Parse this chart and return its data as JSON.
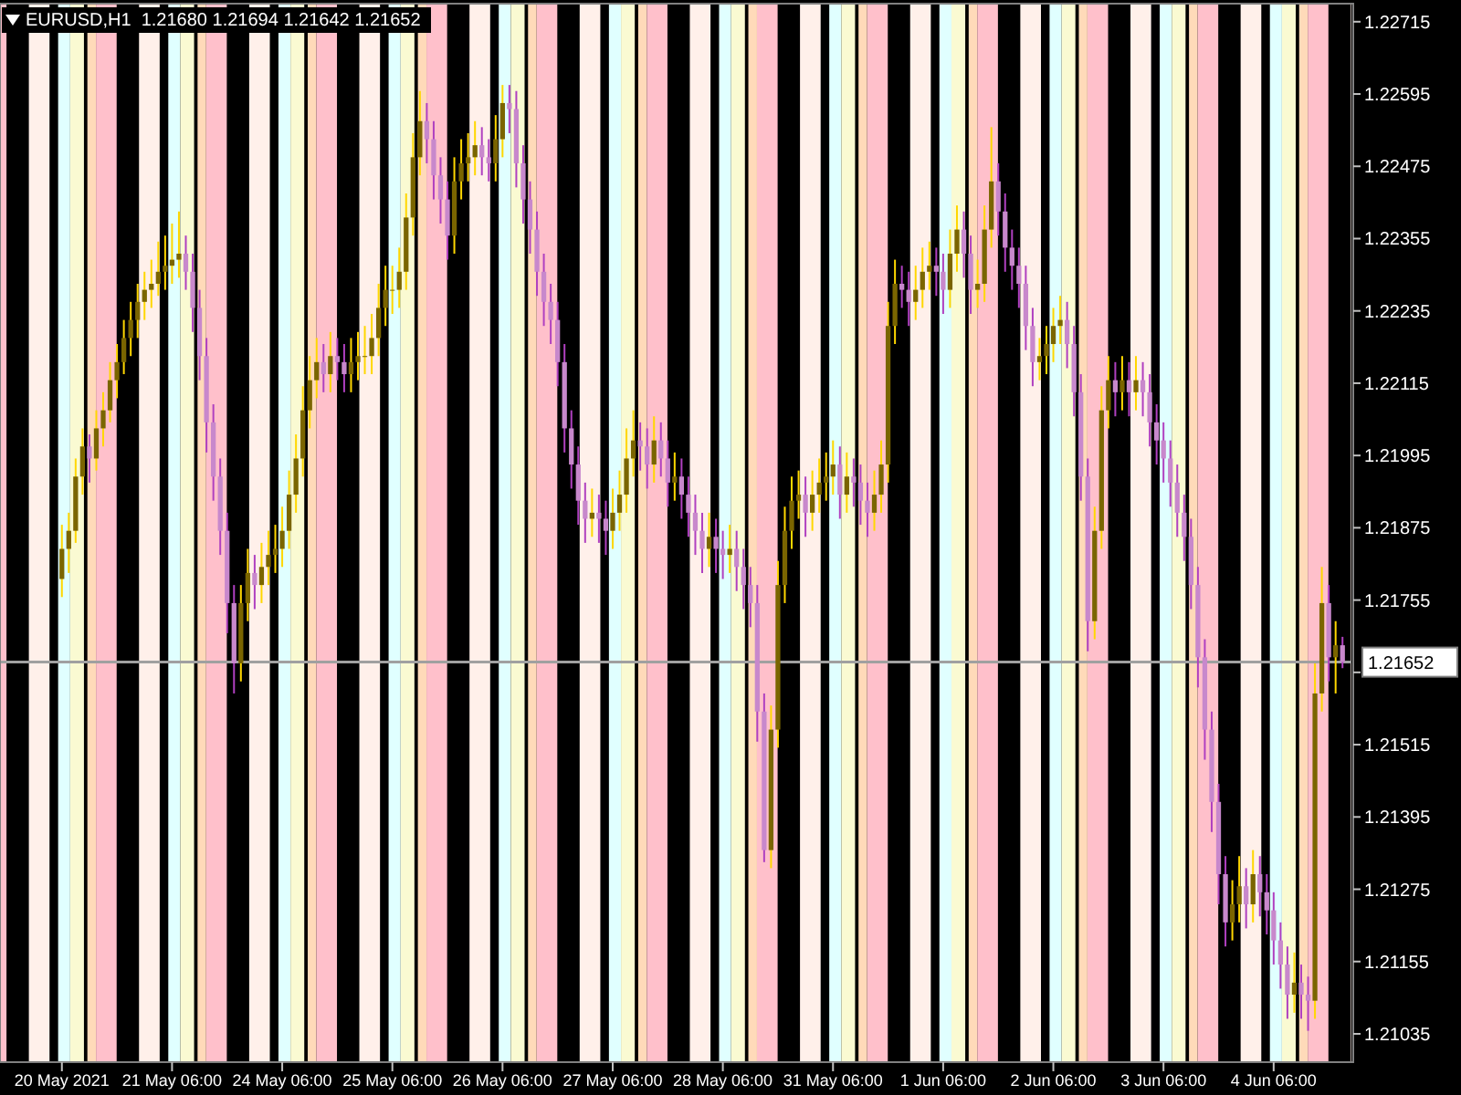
{
  "chart_data": {
    "type": "candlestick",
    "title": "EURUSD,H1  1.21680 1.21694 1.21642 1.21652",
    "categories": [
      "20 May 2021",
      null,
      null,
      null,
      null,
      null,
      null,
      null,
      null,
      null,
      null,
      null,
      null,
      null,
      null,
      null,
      "21 May 06:00",
      null,
      null,
      null,
      null,
      null,
      null,
      null,
      null,
      null,
      null,
      null,
      null,
      null,
      null,
      null,
      "24 May 06:00",
      null,
      null,
      null,
      null,
      null,
      null,
      null,
      null,
      null,
      null,
      null,
      null,
      null,
      null,
      null,
      "25 May 06:00",
      null,
      null,
      null,
      null,
      null,
      null,
      null,
      null,
      null,
      null,
      null,
      null,
      null,
      null,
      null,
      "26 May 06:00",
      null,
      null,
      null,
      null,
      null,
      null,
      null,
      null,
      null,
      null,
      null,
      null,
      null,
      null,
      null,
      "27 May 06:00",
      null,
      null,
      null,
      null,
      null,
      null,
      null,
      null,
      null,
      null,
      null,
      null,
      null,
      null,
      null,
      "28 May 06:00",
      null,
      null,
      null,
      null,
      null,
      null,
      null,
      null,
      null,
      null,
      null,
      null,
      null,
      null,
      null,
      "31 May 06:00",
      null,
      null,
      null,
      null,
      null,
      null,
      null,
      null,
      null,
      null,
      null,
      null,
      null,
      null,
      null,
      "1 Jun 06:00",
      null,
      null,
      null,
      null,
      null,
      null,
      null,
      null,
      null,
      null,
      null,
      null,
      null,
      null,
      null,
      "2 Jun 06:00",
      null,
      null,
      null,
      null,
      null,
      null,
      null,
      null,
      null,
      null,
      null,
      null,
      null,
      null,
      null,
      "3 Jun 06:00",
      null,
      null,
      null,
      null,
      null,
      null,
      null,
      null,
      null,
      null,
      null,
      null,
      null,
      null,
      null,
      "4 Jun 06:00",
      null,
      null,
      null,
      null,
      null,
      null,
      null,
      null,
      null,
      null
    ],
    "ohlc": [
      [
        1.2179,
        1.2188,
        1.2176,
        1.2184
      ],
      [
        1.2184,
        1.219,
        1.218,
        1.2187
      ],
      [
        1.2187,
        1.2199,
        1.2185,
        1.2196
      ],
      [
        1.2196,
        1.2204,
        1.2193,
        1.2201
      ],
      [
        1.2201,
        1.2203,
        1.2195,
        1.2199
      ],
      [
        1.2199,
        1.2207,
        1.2197,
        1.2204
      ],
      [
        1.2204,
        1.221,
        1.2201,
        1.2207
      ],
      [
        1.2207,
        1.2215,
        1.2205,
        1.2212
      ],
      [
        1.2212,
        1.2218,
        1.2209,
        1.2215
      ],
      [
        1.2215,
        1.2222,
        1.2213,
        1.2219
      ],
      [
        1.2219,
        1.2225,
        1.2216,
        1.2222
      ],
      [
        1.2222,
        1.2228,
        1.2219,
        1.2225
      ],
      [
        1.2225,
        1.223,
        1.2222,
        1.2227
      ],
      [
        1.2227,
        1.2232,
        1.2224,
        1.2228
      ],
      [
        1.2228,
        1.2235,
        1.2226,
        1.223
      ],
      [
        1.223,
        1.2236,
        1.2227,
        1.2231
      ],
      [
        1.2231,
        1.2238,
        1.2228,
        1.2232
      ],
      [
        1.2232,
        1.224,
        1.2229,
        1.2233
      ],
      [
        1.2233,
        1.2236,
        1.2227,
        1.223
      ],
      [
        1.223,
        1.2233,
        1.222,
        1.2224
      ],
      [
        1.2224,
        1.2227,
        1.2212,
        1.2216
      ],
      [
        1.2216,
        1.2219,
        1.22,
        1.2205
      ],
      [
        1.2205,
        1.2208,
        1.2192,
        1.2196
      ],
      [
        1.2196,
        1.2199,
        1.2183,
        1.2187
      ],
      [
        1.2187,
        1.219,
        1.217,
        1.2175
      ],
      [
        1.2175,
        1.2178,
        1.216,
        1.2165
      ],
      [
        1.2165,
        1.2178,
        1.2162,
        1.2175
      ],
      [
        1.2175,
        1.2184,
        1.2172,
        1.218
      ],
      [
        1.218,
        1.2183,
        1.2174,
        1.2178
      ],
      [
        1.2178,
        1.2185,
        1.2175,
        1.2181
      ],
      [
        1.2181,
        1.2187,
        1.2178,
        1.2183
      ],
      [
        1.2183,
        1.2188,
        1.218,
        1.2184
      ],
      [
        1.2184,
        1.2191,
        1.2181,
        1.2187
      ],
      [
        1.2187,
        1.2197,
        1.2184,
        1.2193
      ],
      [
        1.2193,
        1.2203,
        1.219,
        1.2199
      ],
      [
        1.2199,
        1.2211,
        1.2196,
        1.2207
      ],
      [
        1.2207,
        1.2216,
        1.2204,
        1.2212
      ],
      [
        1.2212,
        1.2219,
        1.2209,
        1.2215
      ],
      [
        1.2215,
        1.2218,
        1.221,
        1.2213
      ],
      [
        1.2213,
        1.222,
        1.221,
        1.2216
      ],
      [
        1.2216,
        1.2219,
        1.2212,
        1.2215
      ],
      [
        1.2215,
        1.2218,
        1.221,
        1.2213
      ],
      [
        1.2213,
        1.2219,
        1.221,
        1.2215
      ],
      [
        1.2215,
        1.222,
        1.2212,
        1.2216
      ],
      [
        1.2216,
        1.2221,
        1.2213,
        1.2216
      ],
      [
        1.2216,
        1.2223,
        1.2213,
        1.2219
      ],
      [
        1.2219,
        1.2228,
        1.2216,
        1.2224
      ],
      [
        1.2224,
        1.2231,
        1.2221,
        1.2227
      ],
      [
        1.2227,
        1.2231,
        1.2223,
        1.2227
      ],
      [
        1.2227,
        1.2234,
        1.2224,
        1.223
      ],
      [
        1.223,
        1.2243,
        1.2227,
        1.2239
      ],
      [
        1.2239,
        1.2253,
        1.2236,
        1.2249
      ],
      [
        1.2249,
        1.226,
        1.2246,
        1.2255
      ],
      [
        1.2255,
        1.2258,
        1.2248,
        1.2252
      ],
      [
        1.2252,
        1.2255,
        1.2242,
        1.2246
      ],
      [
        1.2246,
        1.2249,
        1.2238,
        1.2242
      ],
      [
        1.2242,
        1.2245,
        1.2232,
        1.2236
      ],
      [
        1.2236,
        1.2249,
        1.2233,
        1.2245
      ],
      [
        1.2245,
        1.2252,
        1.2242,
        1.2248
      ],
      [
        1.2248,
        1.2253,
        1.2245,
        1.2249
      ],
      [
        1.2249,
        1.2255,
        1.2246,
        1.2251
      ],
      [
        1.2251,
        1.2254,
        1.2246,
        1.2249
      ],
      [
        1.2249,
        1.2252,
        1.2245,
        1.2248
      ],
      [
        1.2248,
        1.2256,
        1.2245,
        1.2252
      ],
      [
        1.2252,
        1.2261,
        1.2249,
        1.2258
      ],
      [
        1.2258,
        1.2261,
        1.2253,
        1.2257
      ],
      [
        1.2257,
        1.226,
        1.2244,
        1.2248
      ],
      [
        1.2248,
        1.2251,
        1.2238,
        1.2242
      ],
      [
        1.2242,
        1.2245,
        1.2233,
        1.2237
      ],
      [
        1.2237,
        1.224,
        1.2226,
        1.223
      ],
      [
        1.223,
        1.2233,
        1.2221,
        1.2225
      ],
      [
        1.2225,
        1.2228,
        1.2218,
        1.2222
      ],
      [
        1.2222,
        1.2225,
        1.2211,
        1.2215
      ],
      [
        1.2215,
        1.2218,
        1.22,
        1.2204
      ],
      [
        1.2204,
        1.2207,
        1.2194,
        1.2198
      ],
      [
        1.2198,
        1.2201,
        1.2188,
        1.2192
      ],
      [
        1.2192,
        1.2195,
        1.2185,
        1.2189
      ],
      [
        1.2189,
        1.2194,
        1.2186,
        1.219
      ],
      [
        1.219,
        1.2193,
        1.2185,
        1.2189
      ],
      [
        1.2189,
        1.2192,
        1.2183,
        1.2187
      ],
      [
        1.2187,
        1.2194,
        1.2184,
        1.219
      ],
      [
        1.219,
        1.2197,
        1.2187,
        1.2193
      ],
      [
        1.2193,
        1.2204,
        1.219,
        1.2199
      ],
      [
        1.2199,
        1.2207,
        1.2196,
        1.2202
      ],
      [
        1.2202,
        1.2205,
        1.2197,
        1.2201
      ],
      [
        1.2201,
        1.2204,
        1.2194,
        1.2198
      ],
      [
        1.2198,
        1.2206,
        1.2195,
        1.2202
      ],
      [
        1.2202,
        1.2205,
        1.2196,
        1.2199
      ],
      [
        1.2199,
        1.2202,
        1.2191,
        1.2195
      ],
      [
        1.2195,
        1.22,
        1.2192,
        1.2196
      ],
      [
        1.2196,
        1.2199,
        1.2189,
        1.2193
      ],
      [
        1.2193,
        1.2196,
        1.2186,
        1.219
      ],
      [
        1.219,
        1.2193,
        1.2183,
        1.2187
      ],
      [
        1.2187,
        1.219,
        1.218,
        1.2184
      ],
      [
        1.2184,
        1.219,
        1.2181,
        1.2186
      ],
      [
        1.2186,
        1.2189,
        1.218,
        1.2184
      ],
      [
        1.2184,
        1.2187,
        1.2179,
        1.2183
      ],
      [
        1.2183,
        1.2188,
        1.218,
        1.2184
      ],
      [
        1.2184,
        1.2187,
        1.2177,
        1.2181
      ],
      [
        1.2181,
        1.2184,
        1.2174,
        1.2178
      ],
      [
        1.2178,
        1.2181,
        1.2171,
        1.2175
      ],
      [
        1.2175,
        1.2178,
        1.2152,
        1.2157
      ],
      [
        1.2157,
        1.216,
        1.2132,
        1.2134
      ],
      [
        1.2134,
        1.2158,
        1.2131,
        1.2154
      ],
      [
        1.2154,
        1.2182,
        1.2151,
        1.2178
      ],
      [
        1.2178,
        1.2191,
        1.2175,
        1.2187
      ],
      [
        1.2187,
        1.2196,
        1.2184,
        1.2192
      ],
      [
        1.2192,
        1.2197,
        1.2189,
        1.2193
      ],
      [
        1.2193,
        1.2196,
        1.2186,
        1.219
      ],
      [
        1.219,
        1.2197,
        1.2187,
        1.2193
      ],
      [
        1.2193,
        1.2199,
        1.219,
        1.2195
      ],
      [
        1.2195,
        1.22,
        1.2192,
        1.2196
      ],
      [
        1.2196,
        1.2202,
        1.2193,
        1.2198
      ],
      [
        1.2198,
        1.2201,
        1.2189,
        1.2193
      ],
      [
        1.2193,
        1.22,
        1.219,
        1.2196
      ],
      [
        1.2196,
        1.2199,
        1.2191,
        1.2195
      ],
      [
        1.2195,
        1.2198,
        1.2188,
        1.2192
      ],
      [
        1.2192,
        1.2195,
        1.2186,
        1.219
      ],
      [
        1.219,
        1.2197,
        1.2187,
        1.2193
      ],
      [
        1.2193,
        1.2202,
        1.219,
        1.2198
      ],
      [
        1.2198,
        1.2225,
        1.2195,
        1.2221
      ],
      [
        1.2221,
        1.2232,
        1.2218,
        1.2228
      ],
      [
        1.2228,
        1.2231,
        1.2224,
        1.2227
      ],
      [
        1.2227,
        1.223,
        1.2221,
        1.2225
      ],
      [
        1.2225,
        1.2231,
        1.2222,
        1.2227
      ],
      [
        1.2227,
        1.2234,
        1.2224,
        1.223
      ],
      [
        1.223,
        1.2235,
        1.2227,
        1.2231
      ],
      [
        1.2231,
        1.2234,
        1.2226,
        1.223
      ],
      [
        1.223,
        1.2233,
        1.2223,
        1.2227
      ],
      [
        1.2227,
        1.2237,
        1.2224,
        1.2233
      ],
      [
        1.2233,
        1.2241,
        1.223,
        1.2237
      ],
      [
        1.2237,
        1.224,
        1.2229,
        1.2233
      ],
      [
        1.2233,
        1.2236,
        1.2223,
        1.2227
      ],
      [
        1.2227,
        1.2232,
        1.2224,
        1.2228
      ],
      [
        1.2228,
        1.2241,
        1.2225,
        1.2237
      ],
      [
        1.2237,
        1.2254,
        1.2234,
        1.2245
      ],
      [
        1.2245,
        1.2248,
        1.2236,
        1.224
      ],
      [
        1.224,
        1.2243,
        1.223,
        1.2234
      ],
      [
        1.2234,
        1.2237,
        1.2227,
        1.2231
      ],
      [
        1.2231,
        1.2234,
        1.2224,
        1.2228
      ],
      [
        1.2228,
        1.2231,
        1.2217,
        1.2221
      ],
      [
        1.2221,
        1.2224,
        1.2211,
        1.2215
      ],
      [
        1.2215,
        1.2219,
        1.2212,
        1.2216
      ],
      [
        1.2216,
        1.2221,
        1.2213,
        1.2218
      ],
      [
        1.2218,
        1.2224,
        1.2215,
        1.2221
      ],
      [
        1.2221,
        1.2226,
        1.2218,
        1.2222
      ],
      [
        1.2222,
        1.2225,
        1.2214,
        1.2218
      ],
      [
        1.2218,
        1.2221,
        1.2206,
        1.221
      ],
      [
        1.221,
        1.2213,
        1.2192,
        1.2196
      ],
      [
        1.2196,
        1.2199,
        1.2167,
        1.2172
      ],
      [
        1.2172,
        1.2191,
        1.2169,
        1.2187
      ],
      [
        1.2187,
        1.2211,
        1.2184,
        1.2207
      ],
      [
        1.2207,
        1.2216,
        1.2204,
        1.2212
      ],
      [
        1.2212,
        1.2215,
        1.2206,
        1.221
      ],
      [
        1.221,
        1.2216,
        1.2207,
        1.2212
      ],
      [
        1.2212,
        1.2215,
        1.2206,
        1.221
      ],
      [
        1.221,
        1.2216,
        1.2207,
        1.2212
      ],
      [
        1.2212,
        1.2215,
        1.2206,
        1.221
      ],
      [
        1.221,
        1.2213,
        1.2201,
        1.2205
      ],
      [
        1.2205,
        1.2208,
        1.2198,
        1.2202
      ],
      [
        1.2202,
        1.2205,
        1.2195,
        1.2199
      ],
      [
        1.2199,
        1.2202,
        1.2191,
        1.2195
      ],
      [
        1.2195,
        1.2198,
        1.2186,
        1.219
      ],
      [
        1.219,
        1.2193,
        1.2182,
        1.2186
      ],
      [
        1.2186,
        1.2189,
        1.2174,
        1.2178
      ],
      [
        1.2178,
        1.2181,
        1.2161,
        1.2166
      ],
      [
        1.2166,
        1.2169,
        1.2149,
        1.2154
      ],
      [
        1.2154,
        1.2157,
        1.2137,
        1.2142
      ],
      [
        1.2142,
        1.2145,
        1.2125,
        1.213
      ],
      [
        1.213,
        1.2133,
        1.2118,
        1.2122
      ],
      [
        1.2122,
        1.2129,
        1.2119,
        1.2125
      ],
      [
        1.2125,
        1.2133,
        1.2122,
        1.2128
      ],
      [
        1.2128,
        1.2131,
        1.2121,
        1.2125
      ],
      [
        1.2125,
        1.2134,
        1.2122,
        1.213
      ],
      [
        1.213,
        1.2133,
        1.2123,
        1.2127
      ],
      [
        1.2127,
        1.213,
        1.212,
        1.2124
      ],
      [
        1.2124,
        1.2127,
        1.2115,
        1.2119
      ],
      [
        1.2119,
        1.2122,
        1.2111,
        1.2115
      ],
      [
        1.2115,
        1.2118,
        1.2106,
        1.211
      ],
      [
        1.211,
        1.2117,
        1.2107,
        1.2112
      ],
      [
        1.2112,
        1.2115,
        1.2106,
        1.211
      ],
      [
        1.211,
        1.2113,
        1.2104,
        1.2109
      ],
      [
        1.2109,
        1.2165,
        1.2106,
        1.216
      ],
      [
        1.216,
        1.2181,
        1.2157,
        1.2175
      ],
      [
        1.2175,
        1.2178,
        1.2162,
        1.2166
      ],
      [
        1.2166,
        1.2172,
        1.216,
        1.2168
      ],
      [
        1.2168,
        1.21694,
        1.21642,
        1.21652
      ]
    ],
    "ylim": [
      1.20988,
      1.22745
    ],
    "yticks": [
      1.21035,
      1.21155,
      1.21275,
      1.21395,
      1.21515,
      {
        "value": 1.21635,
        "label": null
      },
      1.21755,
      1.21875,
      1.21995,
      1.22115,
      1.22235,
      1.22355,
      1.22475,
      1.22595,
      1.22715
    ],
    "ref_lines": [
      {
        "axis": "y",
        "value": 1.21652,
        "label": "1.21652",
        "color": "#a0a0a0"
      }
    ]
  }
}
